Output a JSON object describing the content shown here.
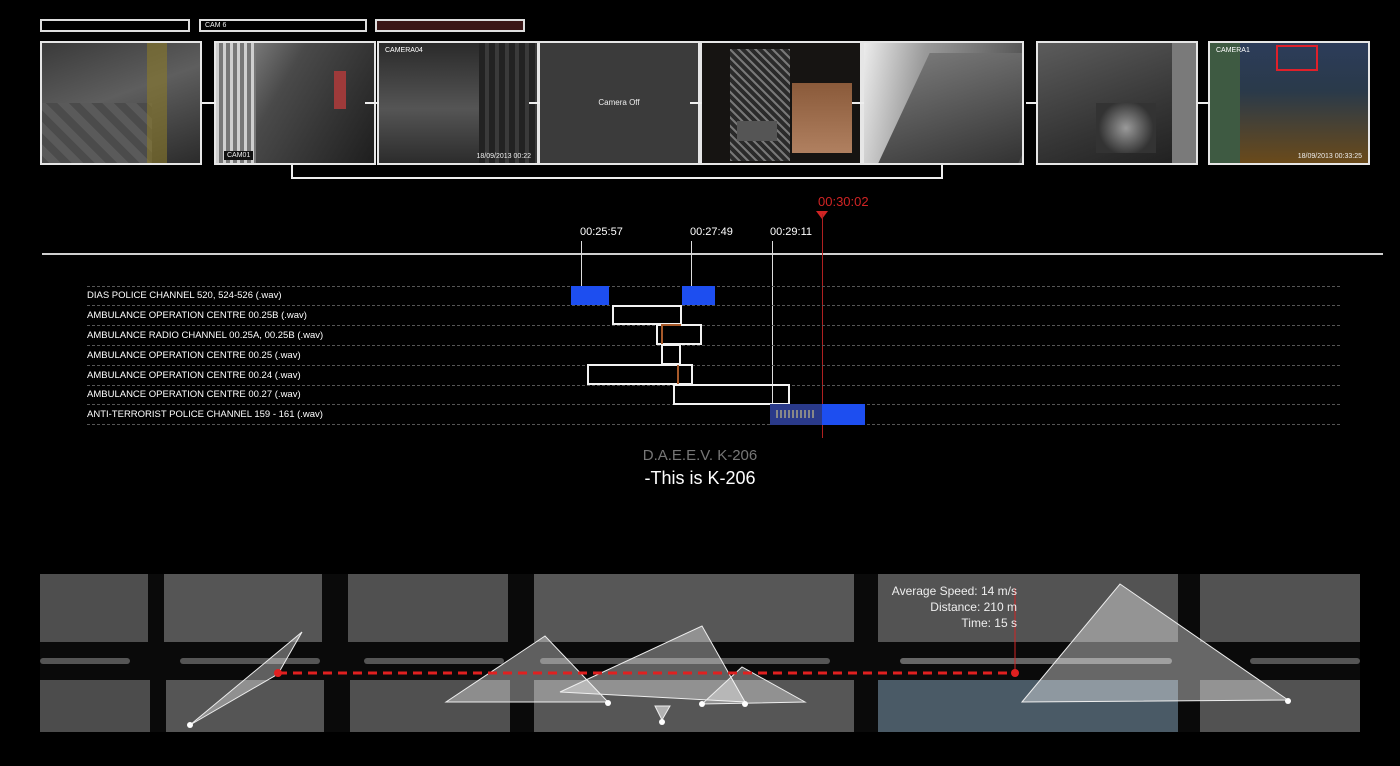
{
  "cameras": [
    {
      "label": "",
      "stamp": "",
      "center": ""
    },
    {
      "label": "",
      "stamp": "CAM01",
      "center": ""
    },
    {
      "label": "CAMERA04",
      "stamp": "18/09/2013 00:22",
      "center": ""
    },
    {
      "label": "",
      "stamp": "",
      "center": "Camera Off"
    },
    {
      "label": "",
      "stamp": "",
      "center": ""
    },
    {
      "label": "",
      "stamp": "",
      "center": ""
    },
    {
      "label": "",
      "stamp": "",
      "center": ""
    },
    {
      "label": "CAMERA1",
      "stamp": "18/09/2013 00:33:25",
      "center": ""
    }
  ],
  "top_bars": [
    "",
    "CAM 6",
    ""
  ],
  "timeline": {
    "markers": [
      "00:25:57",
      "00:27:49",
      "00:29:11"
    ],
    "playhead": "00:30:02",
    "tracks": [
      "DIAS POLICE CHANNEL 520, 524-526 (.wav)",
      "AMBULANCE OPERATION CENTRE 00.25B (.wav)",
      "AMBULANCE RADIO CHANNEL  00.25A, 00.25B (.wav)",
      "AMBULANCE OPERATION CENTRE 00.25 (.wav)",
      "AMBULANCE OPERATION CENTRE 00.24 (.wav)",
      "AMBULANCE OPERATION CENTRE 00.27 (.wav)",
      "ANTI-TERRORIST POLICE CHANNEL 159 - 161 (.wav)"
    ]
  },
  "caption": {
    "speaker": "D.A.E.E.V. K-206",
    "quote": "-This is K-206"
  },
  "map": {
    "stats": [
      "Average Speed: 14 m/s",
      "Distance: 210 m",
      "Time: 15 s"
    ]
  },
  "colors": {
    "accent_red": "#d02424",
    "audio_blue": "#1d4ef0",
    "line_white": "#eeeeee"
  }
}
